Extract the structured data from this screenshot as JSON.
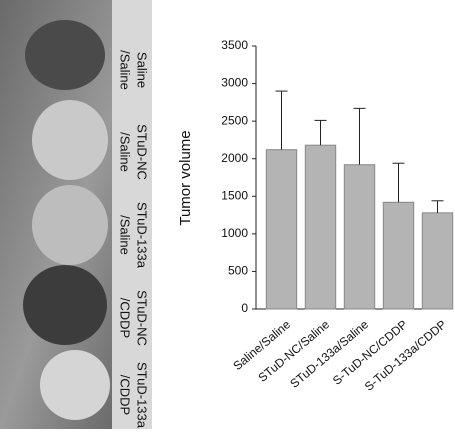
{
  "panel_labels": [
    [
      "Saline",
      "/Saline"
    ],
    [
      "STuD-NC",
      "/Saline"
    ],
    [
      "STuD-133a",
      "/Saline"
    ],
    [
      "STuD-NC",
      "/CDDP"
    ],
    [
      "STuD-133a",
      "/CDDP"
    ]
  ],
  "chart_data": {
    "type": "bar",
    "y_label": "Tumor volume",
    "categories": [
      "Saline/Saline",
      "STuD-NC/Saline",
      "STuD-133a/Saline",
      "S-TuD-NC/CDDP",
      "S-TuD-133a/CDDP"
    ],
    "values": [
      2120,
      2180,
      1920,
      1420,
      1280
    ],
    "errors": [
      780,
      330,
      750,
      520,
      160
    ],
    "color": "#b4b4b4",
    "ylim": [
      0,
      3500
    ],
    "yticks": [
      0,
      500,
      1000,
      1500,
      2000,
      2500,
      3000,
      3500
    ]
  }
}
